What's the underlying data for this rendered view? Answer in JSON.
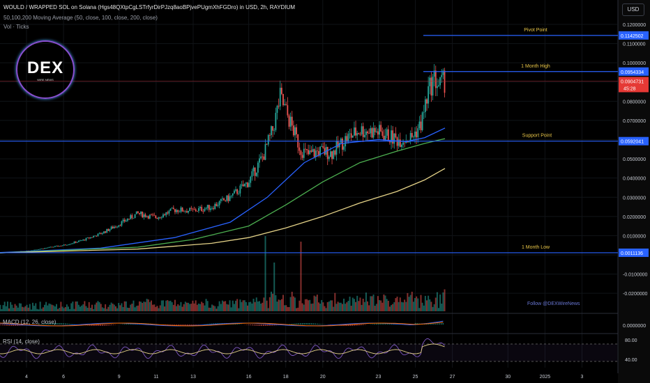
{
  "header": {
    "title": "WOULD / WRAPPED SOL on Solana (Hgs48QXtpCgLSTrfyrDirPJzq8aoBPjvePUgmXhFGDro) in USD, 2h, RAYDIUM",
    "study": "50,100,200 Moving Average (50, close, 100, close, 200, close)",
    "volume": "Vol · Ticks",
    "currency": "USD"
  },
  "logo": {
    "big": "DEX",
    "small": "WIRE NEWS"
  },
  "follow_text": "Follow @DEXWireNews",
  "macd_label": "MACD (12, 26, close)",
  "rsi_label": "RSI (14, close)",
  "countdown": "45:28",
  "colors": {
    "up": "#26a69a",
    "down": "#ef5350",
    "ma50": "#2962ff",
    "ma100": "#4caf50",
    "ma200": "#e5d388",
    "level": "#2962ff",
    "level_text": "#e8c547",
    "accent_line": "#b22833"
  },
  "chart_data": {
    "type": "candlestick",
    "ylim": [
      -0.028,
      0.125
    ],
    "y_ticks": [
      0.12,
      0.11,
      0.1,
      0.09,
      0.08,
      0.07,
      0.06,
      0.05,
      0.04,
      0.03,
      0.02,
      0.01,
      0,
      -0.01,
      -0.02
    ],
    "y_tick_labels": [
      "0.1200000",
      "0.1100000",
      "0.1000000",
      "",
      "0.0800000",
      "0.0700000",
      "",
      "0.0500000",
      "0.0400000",
      "0.0300000",
      "0.0200000",
      "0.0100000",
      "",
      "-0.0100000",
      "-0.0200000"
    ],
    "x_ticks": [
      {
        "label": "4",
        "day": 4
      },
      {
        "label": "6",
        "day": 6
      },
      {
        "label": "9",
        "day": 9
      },
      {
        "label": "11",
        "day": 11
      },
      {
        "label": "13",
        "day": 13
      },
      {
        "label": "16",
        "day": 16
      },
      {
        "label": "18",
        "day": 18
      },
      {
        "label": "20",
        "day": 20
      },
      {
        "label": "23",
        "day": 23
      },
      {
        "label": "25",
        "day": 25
      },
      {
        "label": "27",
        "day": 27
      },
      {
        "label": "30",
        "day": 30
      },
      {
        "label": "2025",
        "day": 32
      },
      {
        "label": "3",
        "day": 34
      }
    ],
    "levels": [
      {
        "name": "Pivot Point",
        "value": 0.1142502,
        "label": "0.1142502"
      },
      {
        "name": "1 Month High",
        "value": 0.0954334,
        "label": "0.0954334"
      },
      {
        "name": "Support Point",
        "value": 0.0592041,
        "label": "0.0592041"
      },
      {
        "name": "1 Month Low",
        "value": 0.0011136,
        "label": "0.0011136"
      }
    ],
    "last_price": {
      "value": 0.0904731,
      "label": "0.0904731"
    },
    "price_path": [
      [
        2.5,
        0.001
      ],
      [
        4,
        0.002
      ],
      [
        5,
        0.0035
      ],
      [
        6,
        0.005
      ],
      [
        7,
        0.0075
      ],
      [
        8,
        0.011
      ],
      [
        9,
        0.016
      ],
      [
        10,
        0.0215
      ],
      [
        11,
        0.0195
      ],
      [
        12,
        0.0235
      ],
      [
        13,
        0.023
      ],
      [
        14,
        0.025
      ],
      [
        15,
        0.03
      ],
      [
        16,
        0.038
      ],
      [
        16.8,
        0.052
      ],
      [
        17.3,
        0.065
      ],
      [
        17.7,
        0.082
      ],
      [
        18.2,
        0.07
      ],
      [
        18.8,
        0.055
      ],
      [
        19.2,
        0.052
      ],
      [
        19.8,
        0.054
      ],
      [
        20.5,
        0.053
      ],
      [
        21.2,
        0.06
      ],
      [
        22.0,
        0.065
      ],
      [
        23.0,
        0.064
      ],
      [
        24.0,
        0.06
      ],
      [
        24.8,
        0.061
      ],
      [
        25.3,
        0.068
      ],
      [
        25.7,
        0.085
      ],
      [
        26.0,
        0.092
      ],
      [
        26.3,
        0.088
      ],
      [
        26.6,
        0.0905
      ]
    ],
    "series": [
      {
        "name": "MA 50",
        "points": [
          [
            2.5,
            0.0012
          ],
          [
            8,
            0.0035
          ],
          [
            12,
            0.009
          ],
          [
            15,
            0.017
          ],
          [
            17,
            0.03
          ],
          [
            19,
            0.048
          ],
          [
            21,
            0.058
          ],
          [
            23,
            0.06
          ],
          [
            24.5,
            0.059
          ],
          [
            25.5,
            0.061
          ],
          [
            26.6,
            0.066
          ]
        ]
      },
      {
        "name": "MA 100",
        "points": [
          [
            2.5,
            0.001
          ],
          [
            10,
            0.004
          ],
          [
            13,
            0.008
          ],
          [
            16,
            0.015
          ],
          [
            18,
            0.026
          ],
          [
            20,
            0.038
          ],
          [
            22,
            0.048
          ],
          [
            24,
            0.054
          ],
          [
            25.5,
            0.058
          ],
          [
            26.6,
            0.0605
          ]
        ]
      },
      {
        "name": "MA 200",
        "points": [
          [
            2.5,
            0.001
          ],
          [
            10,
            0.003
          ],
          [
            14,
            0.006
          ],
          [
            16,
            0.009
          ],
          [
            18,
            0.014
          ],
          [
            20,
            0.02
          ],
          [
            22,
            0.027
          ],
          [
            24,
            0.033
          ],
          [
            25.5,
            0.039
          ],
          [
            26.6,
            0.045
          ]
        ]
      }
    ]
  }
}
